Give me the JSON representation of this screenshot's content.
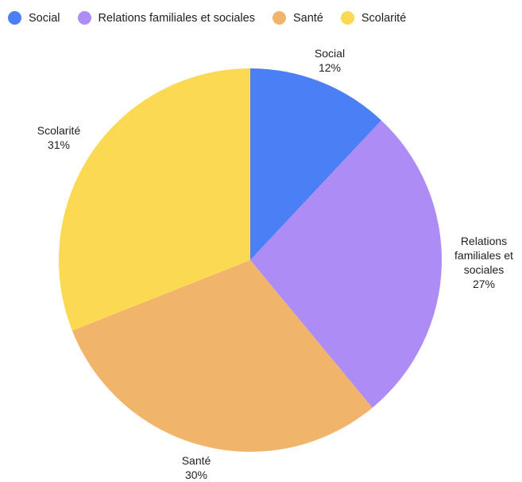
{
  "chart_data": {
    "type": "pie",
    "categories": [
      "Social",
      "Relations familiales et sociales",
      "Santé",
      "Scolarité"
    ],
    "values": [
      12,
      27,
      30,
      31
    ],
    "value_labels": [
      "12%",
      "27%",
      "30%",
      "31%"
    ],
    "slice_labels": [
      [
        "Social"
      ],
      [
        "Relations",
        "familiales et",
        "sociales"
      ],
      [
        "Santé"
      ],
      [
        "Scolarité"
      ]
    ],
    "colors": [
      "#4a7ff5",
      "#ad8df5",
      "#f0b56a",
      "#fbd953"
    ],
    "legend_position": "top-left",
    "start_angle": "12 o'clock",
    "direction": "clockwise"
  }
}
